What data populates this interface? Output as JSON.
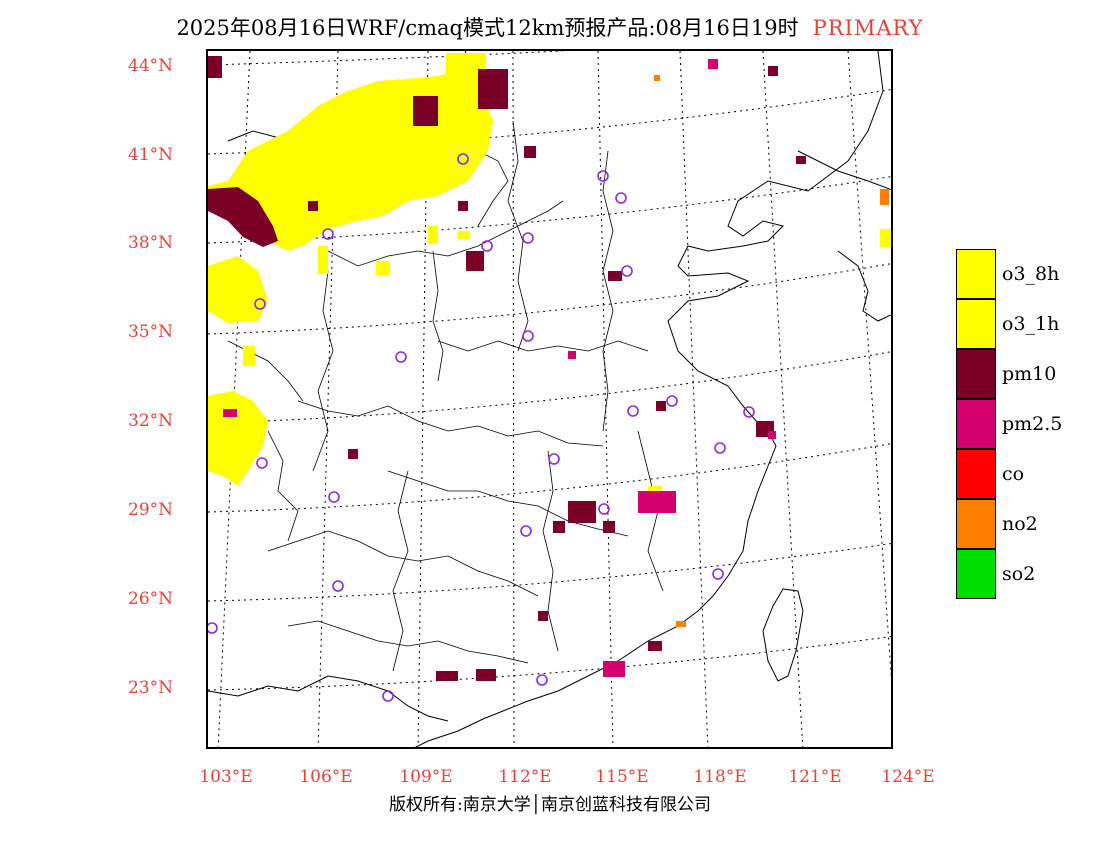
{
  "title": {
    "main": "2025年08月16日WRF/cmaq模式12km预报产品:08月16日19时",
    "tag": "PRIMARY"
  },
  "axes": {
    "lat_labels": [
      "44°N",
      "41°N",
      "38°N",
      "35°N",
      "32°N",
      "29°N",
      "26°N",
      "23°N"
    ],
    "lon_labels": [
      "103°E",
      "106°E",
      "109°E",
      "112°E",
      "115°E",
      "118°E",
      "121°E",
      "124°E"
    ]
  },
  "legend": [
    {
      "label": "o3_8h",
      "color": "#ffff00"
    },
    {
      "label": "o3_1h",
      "color": "#ffff00"
    },
    {
      "label": "pm10",
      "color": "#7a0028"
    },
    {
      "label": "pm2.5",
      "color": "#d4006e"
    },
    {
      "label": "co",
      "color": "#ff0000"
    },
    {
      "label": "no2",
      "color": "#ff8000"
    },
    {
      "label": "so2",
      "color": "#00dd00"
    }
  ],
  "colors": {
    "o3": "#ffff00",
    "pm10": "#7a0028",
    "pm25": "#d4006e",
    "no2": "#ff8000",
    "city_marker": "#8a2be2",
    "axis_label": "#e8413c"
  },
  "copyright": "版权所有:南京大学│南京创蓝科技有限公司"
}
